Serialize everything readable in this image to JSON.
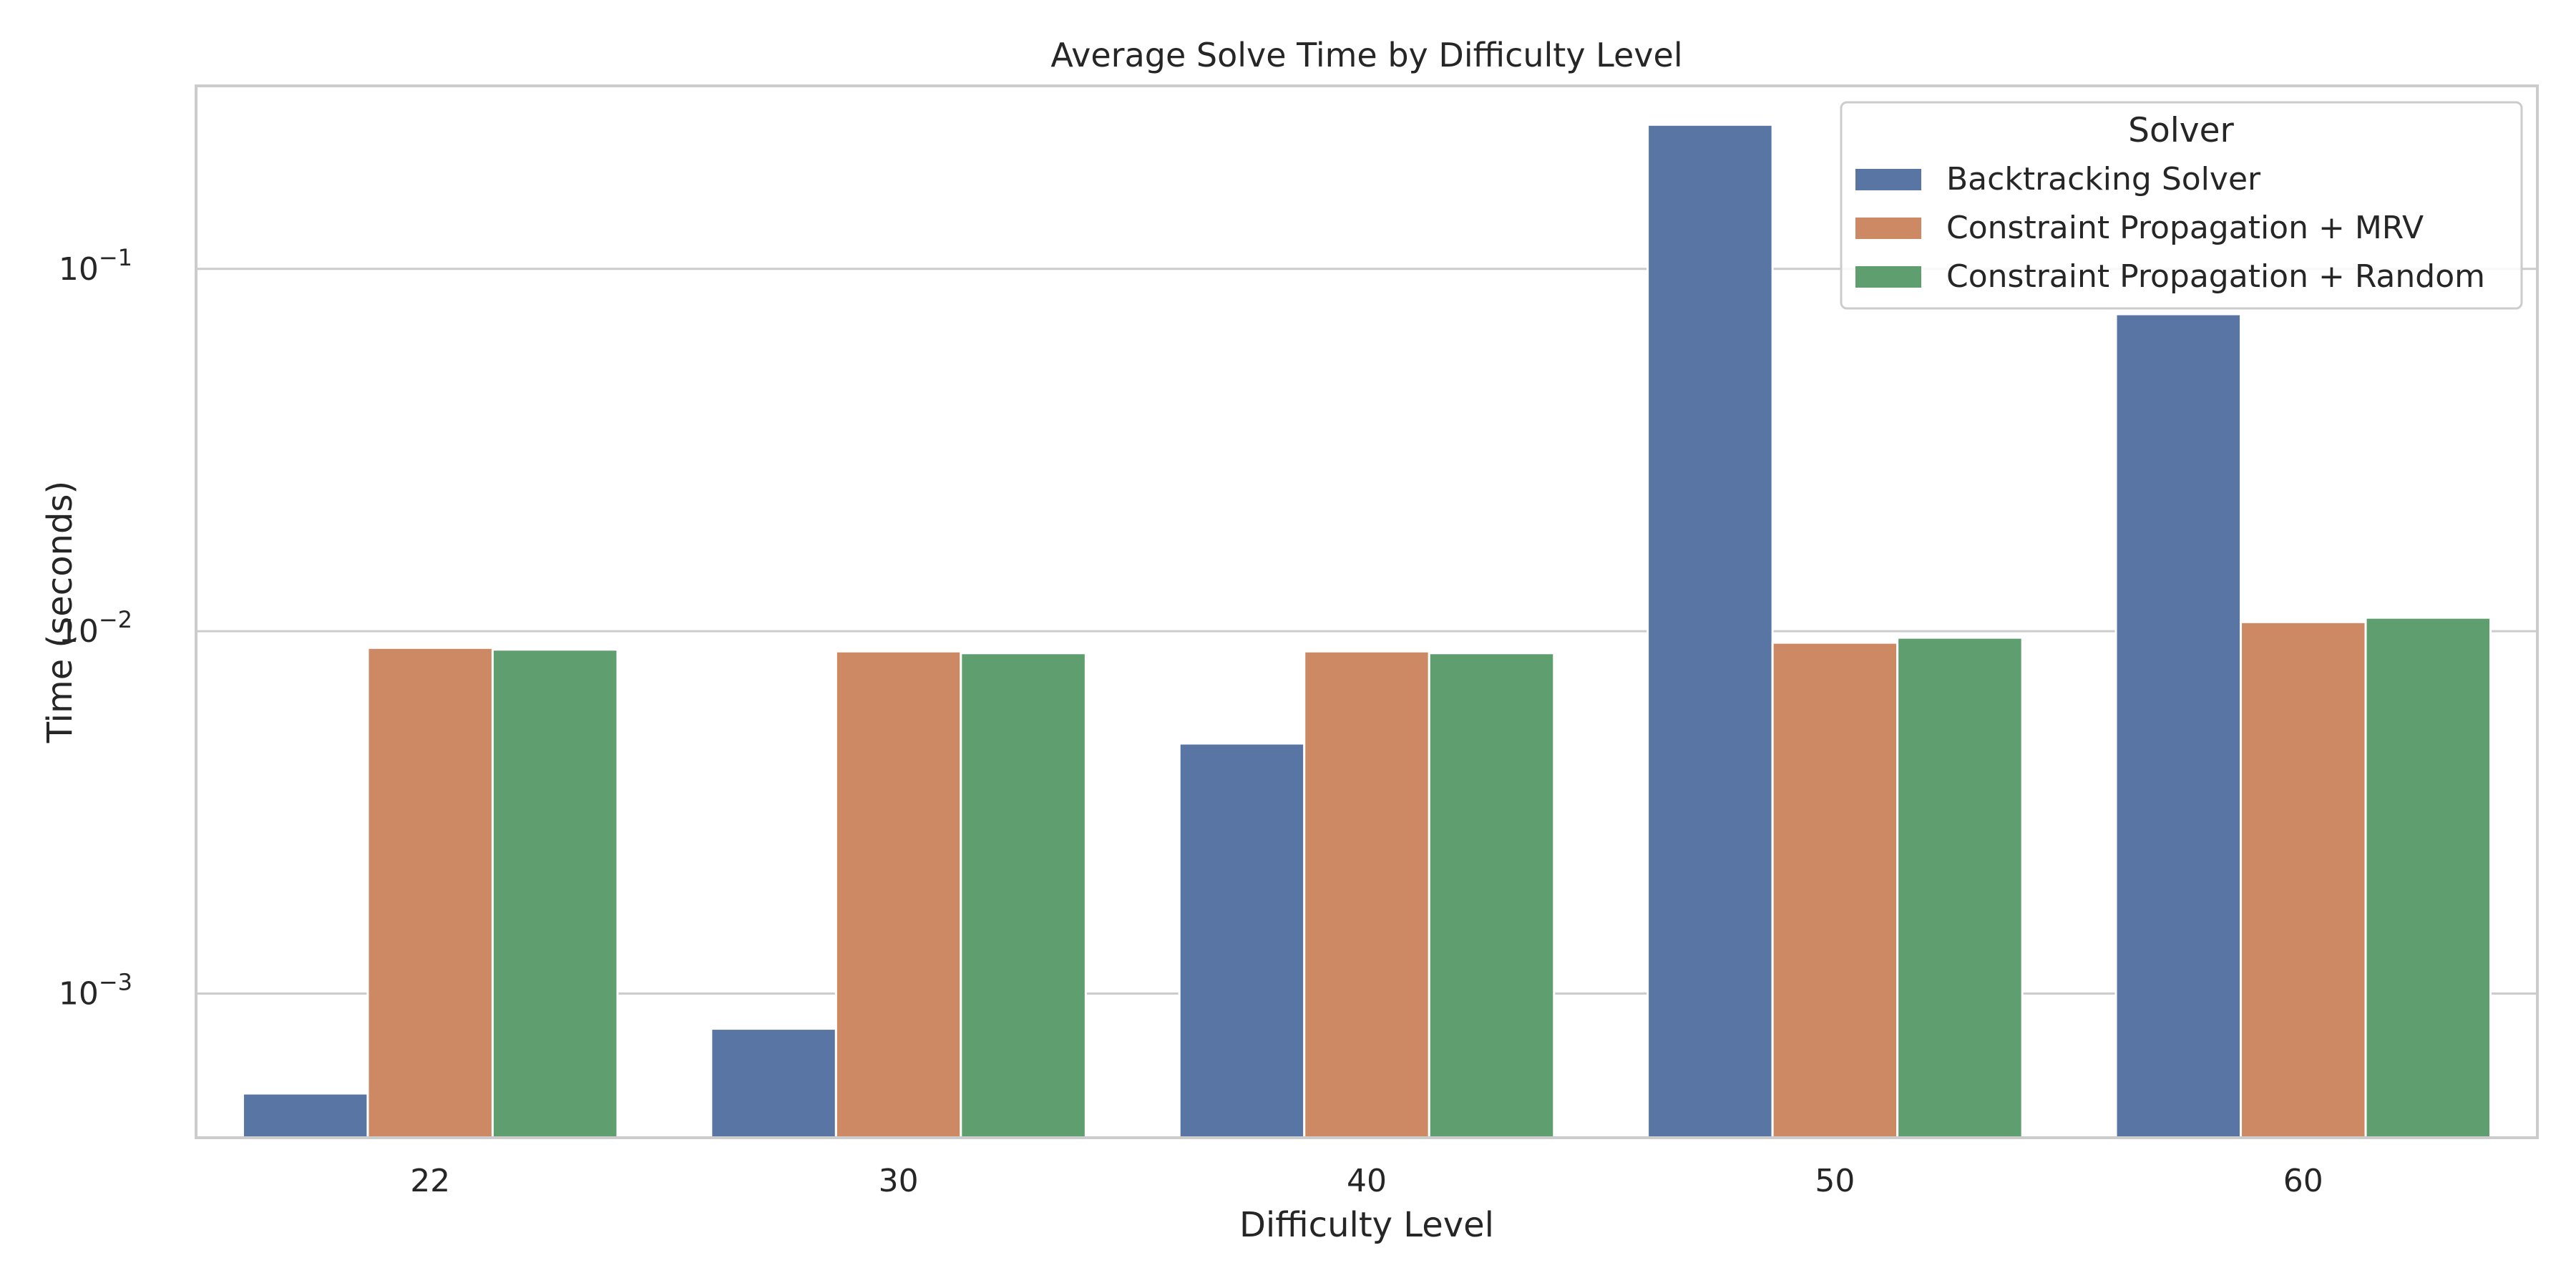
{
  "chart_data": {
    "type": "bar",
    "title": "Average Solve Time by Difficulty Level",
    "xlabel": "Difficulty Level",
    "ylabel": "Time (seconds)",
    "yscale": "log",
    "ylim": [
      0.0004,
      0.32
    ],
    "grid": true,
    "categories": [
      "22",
      "30",
      "40",
      "50",
      "60"
    ],
    "yticks": [
      {
        "value": 0.001,
        "base": "10",
        "exp": "−3"
      },
      {
        "value": 0.01,
        "base": "10",
        "exp": "−2"
      },
      {
        "value": 0.1,
        "base": "10",
        "exp": "−1"
      }
    ],
    "legend": {
      "title": "Solver",
      "position": "top-right"
    },
    "series": [
      {
        "name": "Backtracking Solver",
        "color": "#5875a4",
        "values": [
          0.00053,
          0.0008,
          0.0049,
          0.25,
          0.075
        ]
      },
      {
        "name": "Constraint Propagation + MRV",
        "color": "#cc8963",
        "values": [
          0.009,
          0.0088,
          0.0088,
          0.0093,
          0.0106
        ]
      },
      {
        "name": "Constraint Propagation + Random",
        "color": "#5f9e6e",
        "values": [
          0.0089,
          0.0087,
          0.0087,
          0.0096,
          0.0109
        ]
      }
    ]
  }
}
